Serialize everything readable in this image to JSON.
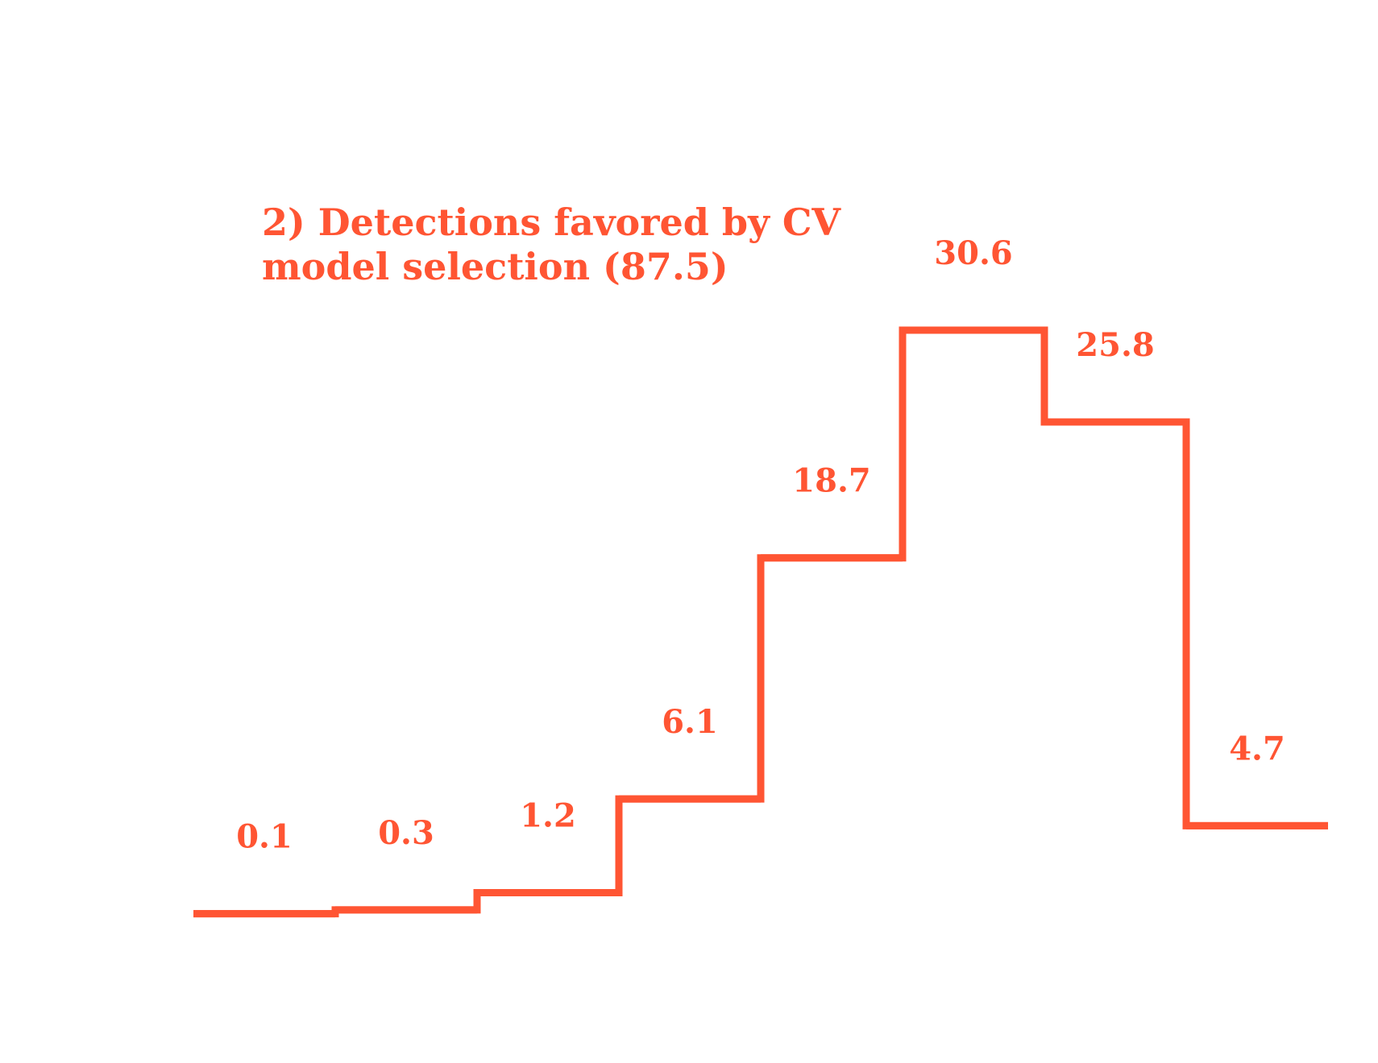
{
  "chart_data": {
    "type": "step",
    "title_lines": [
      "2) Detections favored by CV",
      "model selection (87.5)"
    ],
    "values": [
      0.1,
      0.3,
      1.2,
      6.1,
      18.7,
      30.6,
      25.8,
      4.7
    ],
    "labels": [
      "0.1",
      "0.3",
      "1.2",
      "6.1",
      "18.7",
      "30.6",
      "25.8",
      "4.7"
    ],
    "ylim": [
      0,
      30.6
    ],
    "grid": false,
    "axes_visible": false,
    "color": "#ff5533"
  }
}
